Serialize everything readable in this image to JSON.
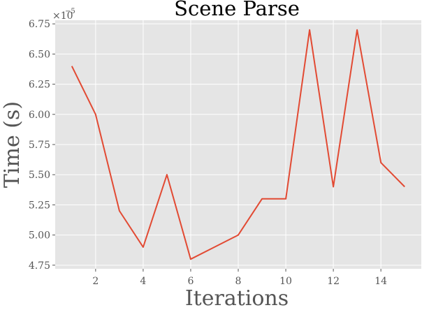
{
  "chart_data": {
    "type": "line",
    "title": "Scene Parse",
    "xlabel": "Iterations",
    "ylabel": "Time (s)",
    "y_scale_label": "×10",
    "y_scale_exponent": "−5",
    "x_ticks": [
      2,
      4,
      6,
      8,
      10,
      12,
      14
    ],
    "y_ticks": [
      "4.75",
      "5.00",
      "5.25",
      "5.50",
      "5.75",
      "6.00",
      "6.25",
      "6.50",
      "6.75"
    ],
    "xlim": [
      0.3,
      15.7
    ],
    "ylim": [
      4.72,
      6.78
    ],
    "grid": true,
    "background": "#E5E5E5",
    "line_color": "#E24A33",
    "series": [
      {
        "x": [
          1,
          2,
          3,
          4,
          5,
          6,
          7,
          8,
          9,
          10,
          11,
          12,
          13,
          14,
          15
        ],
        "y": [
          6.4,
          6.0,
          5.2,
          4.9,
          5.5,
          4.8,
          4.9,
          5.0,
          5.3,
          5.3,
          6.7,
          5.4,
          6.7,
          5.6,
          5.4
        ]
      }
    ]
  }
}
